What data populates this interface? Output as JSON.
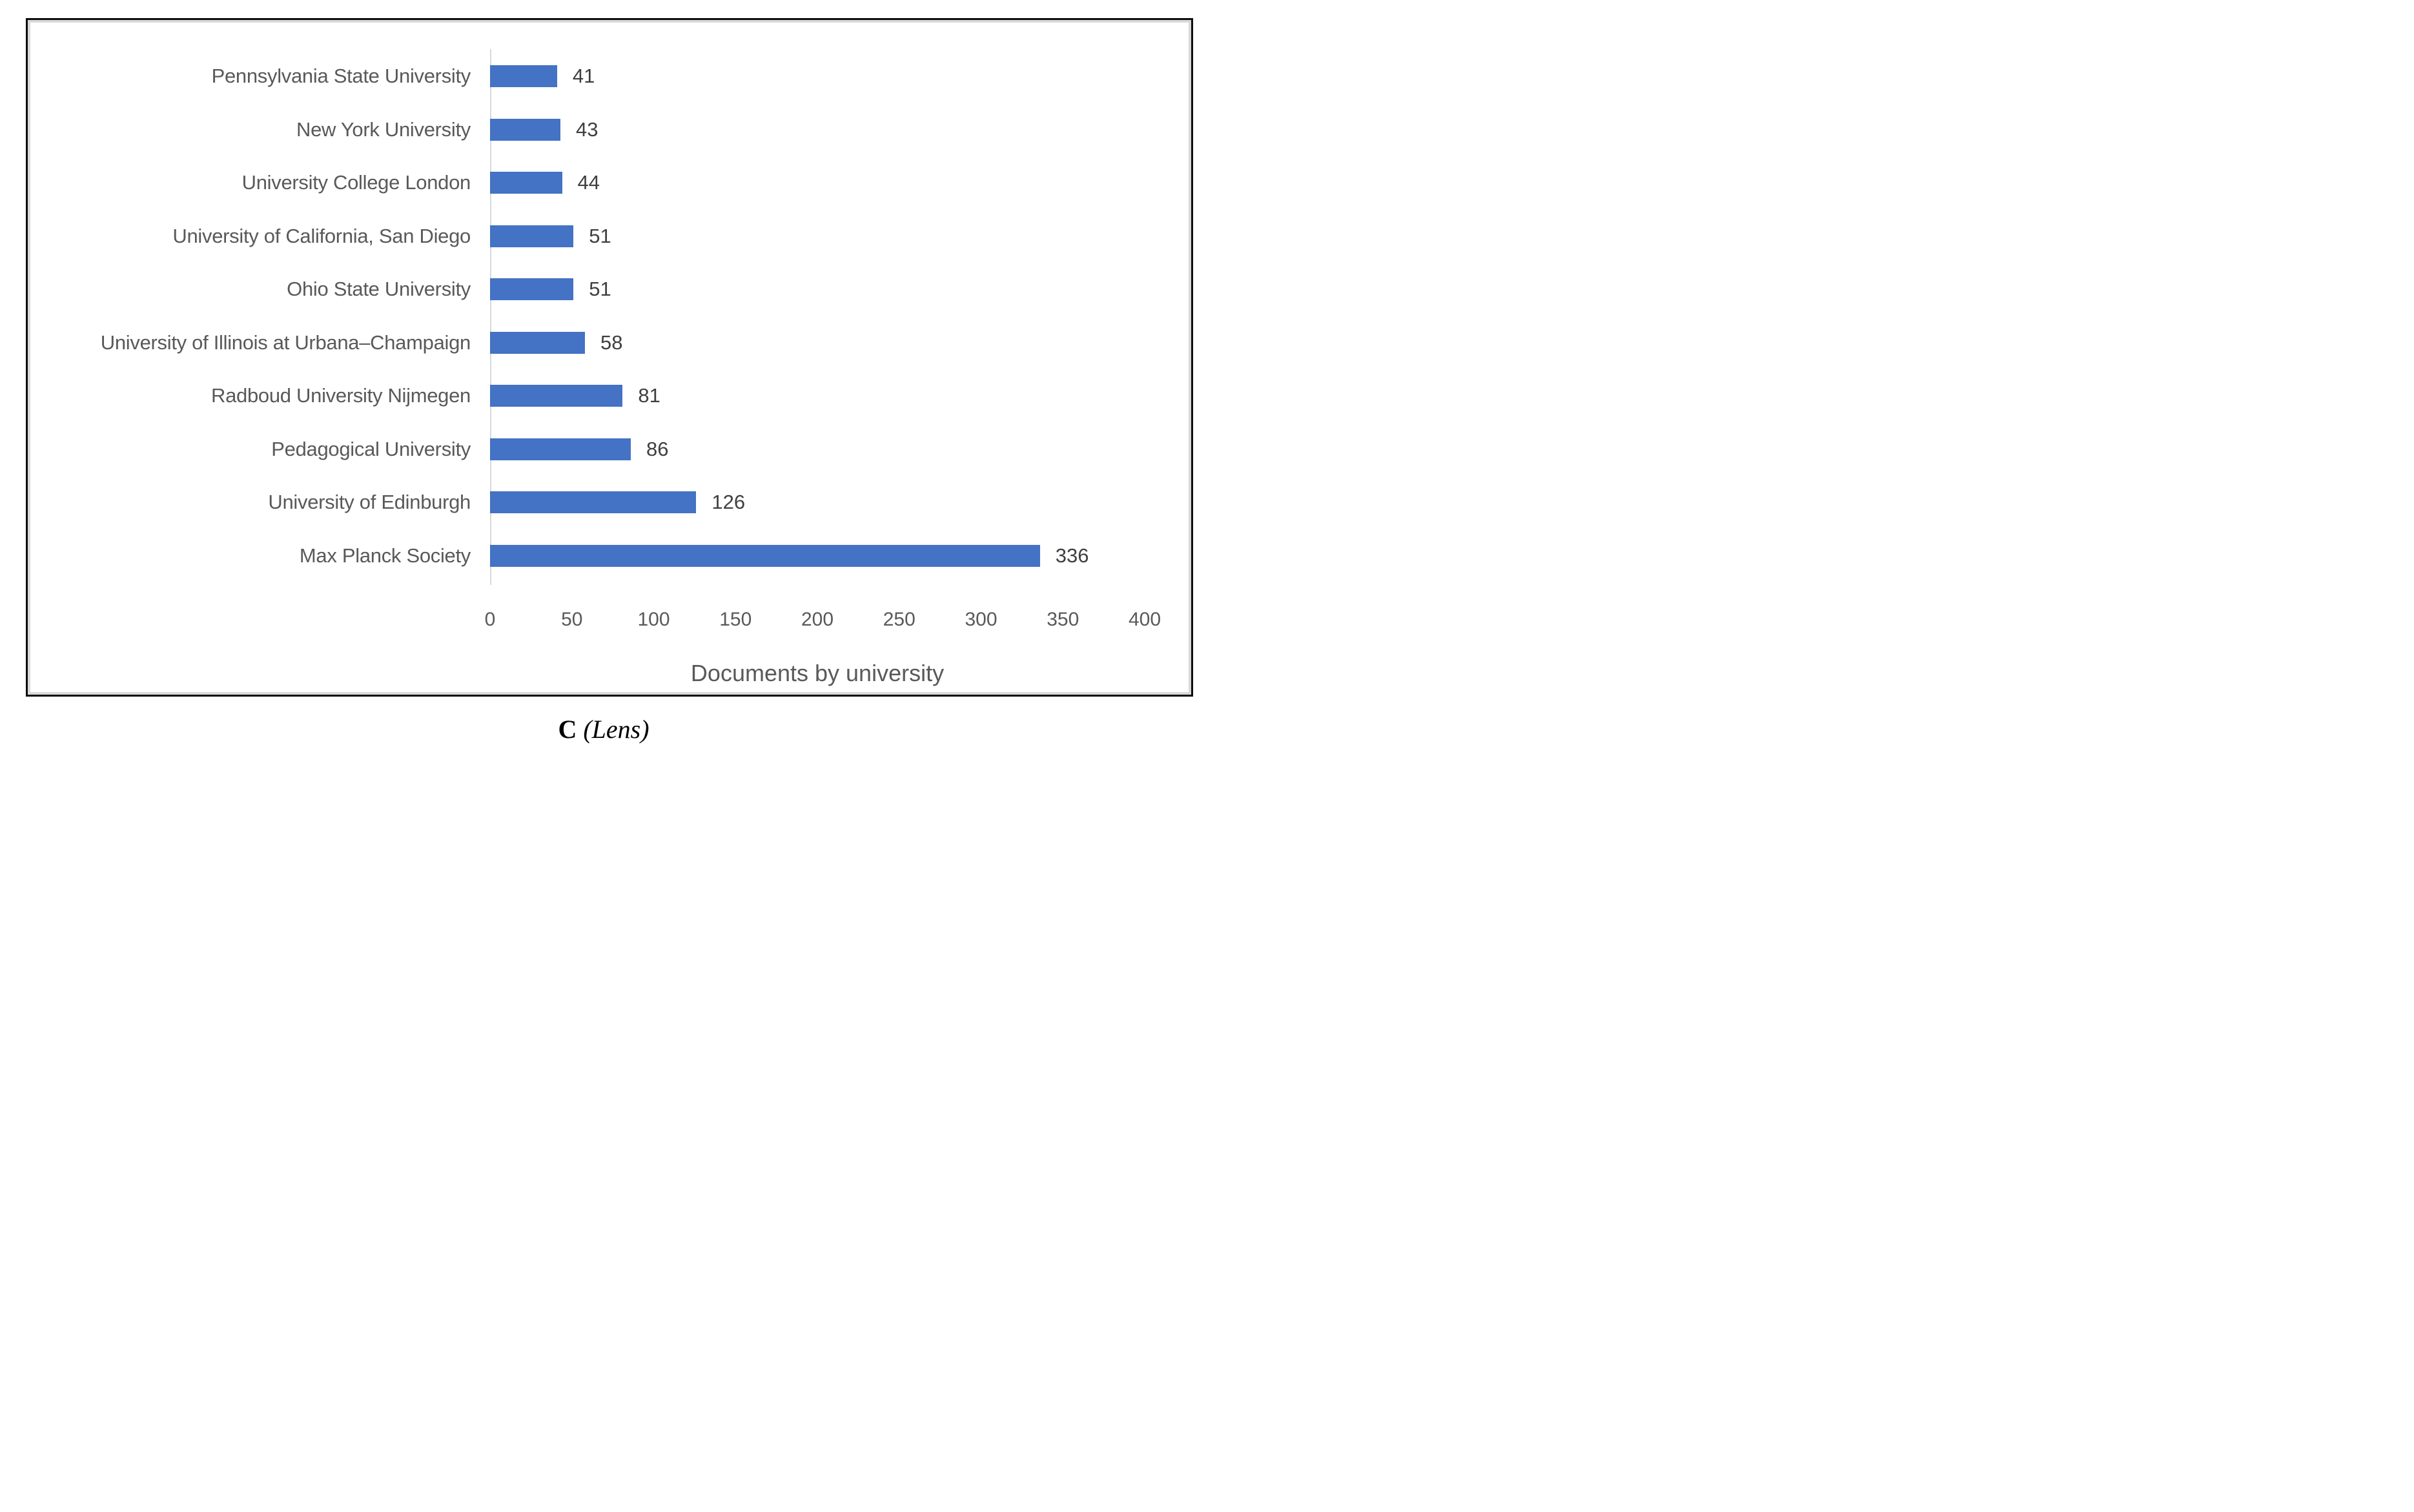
{
  "chart_data": {
    "type": "bar",
    "orientation": "horizontal",
    "title": "",
    "xlabel": "Documents by university",
    "ylabel": "",
    "categories": [
      "Pennsylvania State University",
      "New York University",
      "University College London",
      "University of California, San Diego",
      "Ohio State University",
      "University of Illinois at Urbana–Champaign",
      "Radboud University Nijmegen",
      "Pedagogical University",
      "University of Edinburgh",
      "Max Planck Society"
    ],
    "values": [
      41,
      43,
      44,
      51,
      51,
      58,
      81,
      86,
      126,
      336
    ],
    "data_labels": [
      "41",
      "43",
      "44",
      "51",
      "51",
      "58",
      "81",
      "86",
      "126",
      "336"
    ],
    "x_ticks": [
      "0",
      "50",
      "100",
      "150",
      "200",
      "250",
      "300",
      "350",
      "400"
    ],
    "x_tick_values": [
      0,
      50,
      100,
      150,
      200,
      250,
      300,
      350,
      400
    ],
    "xlim": [
      0,
      400
    ],
    "grid": false,
    "legend": false,
    "bar_color": "#4472C4"
  },
  "caption": {
    "label": "C",
    "source": "(Lens)"
  },
  "colors": {
    "bar": "#4472C4",
    "axis_line": "#D9D9D9",
    "axis_text": "#595959",
    "value_text": "#3F3F3F",
    "figure_border": "#0D0D0D",
    "inner_border": "#D9D9D9",
    "background": "#FFFFFF"
  }
}
